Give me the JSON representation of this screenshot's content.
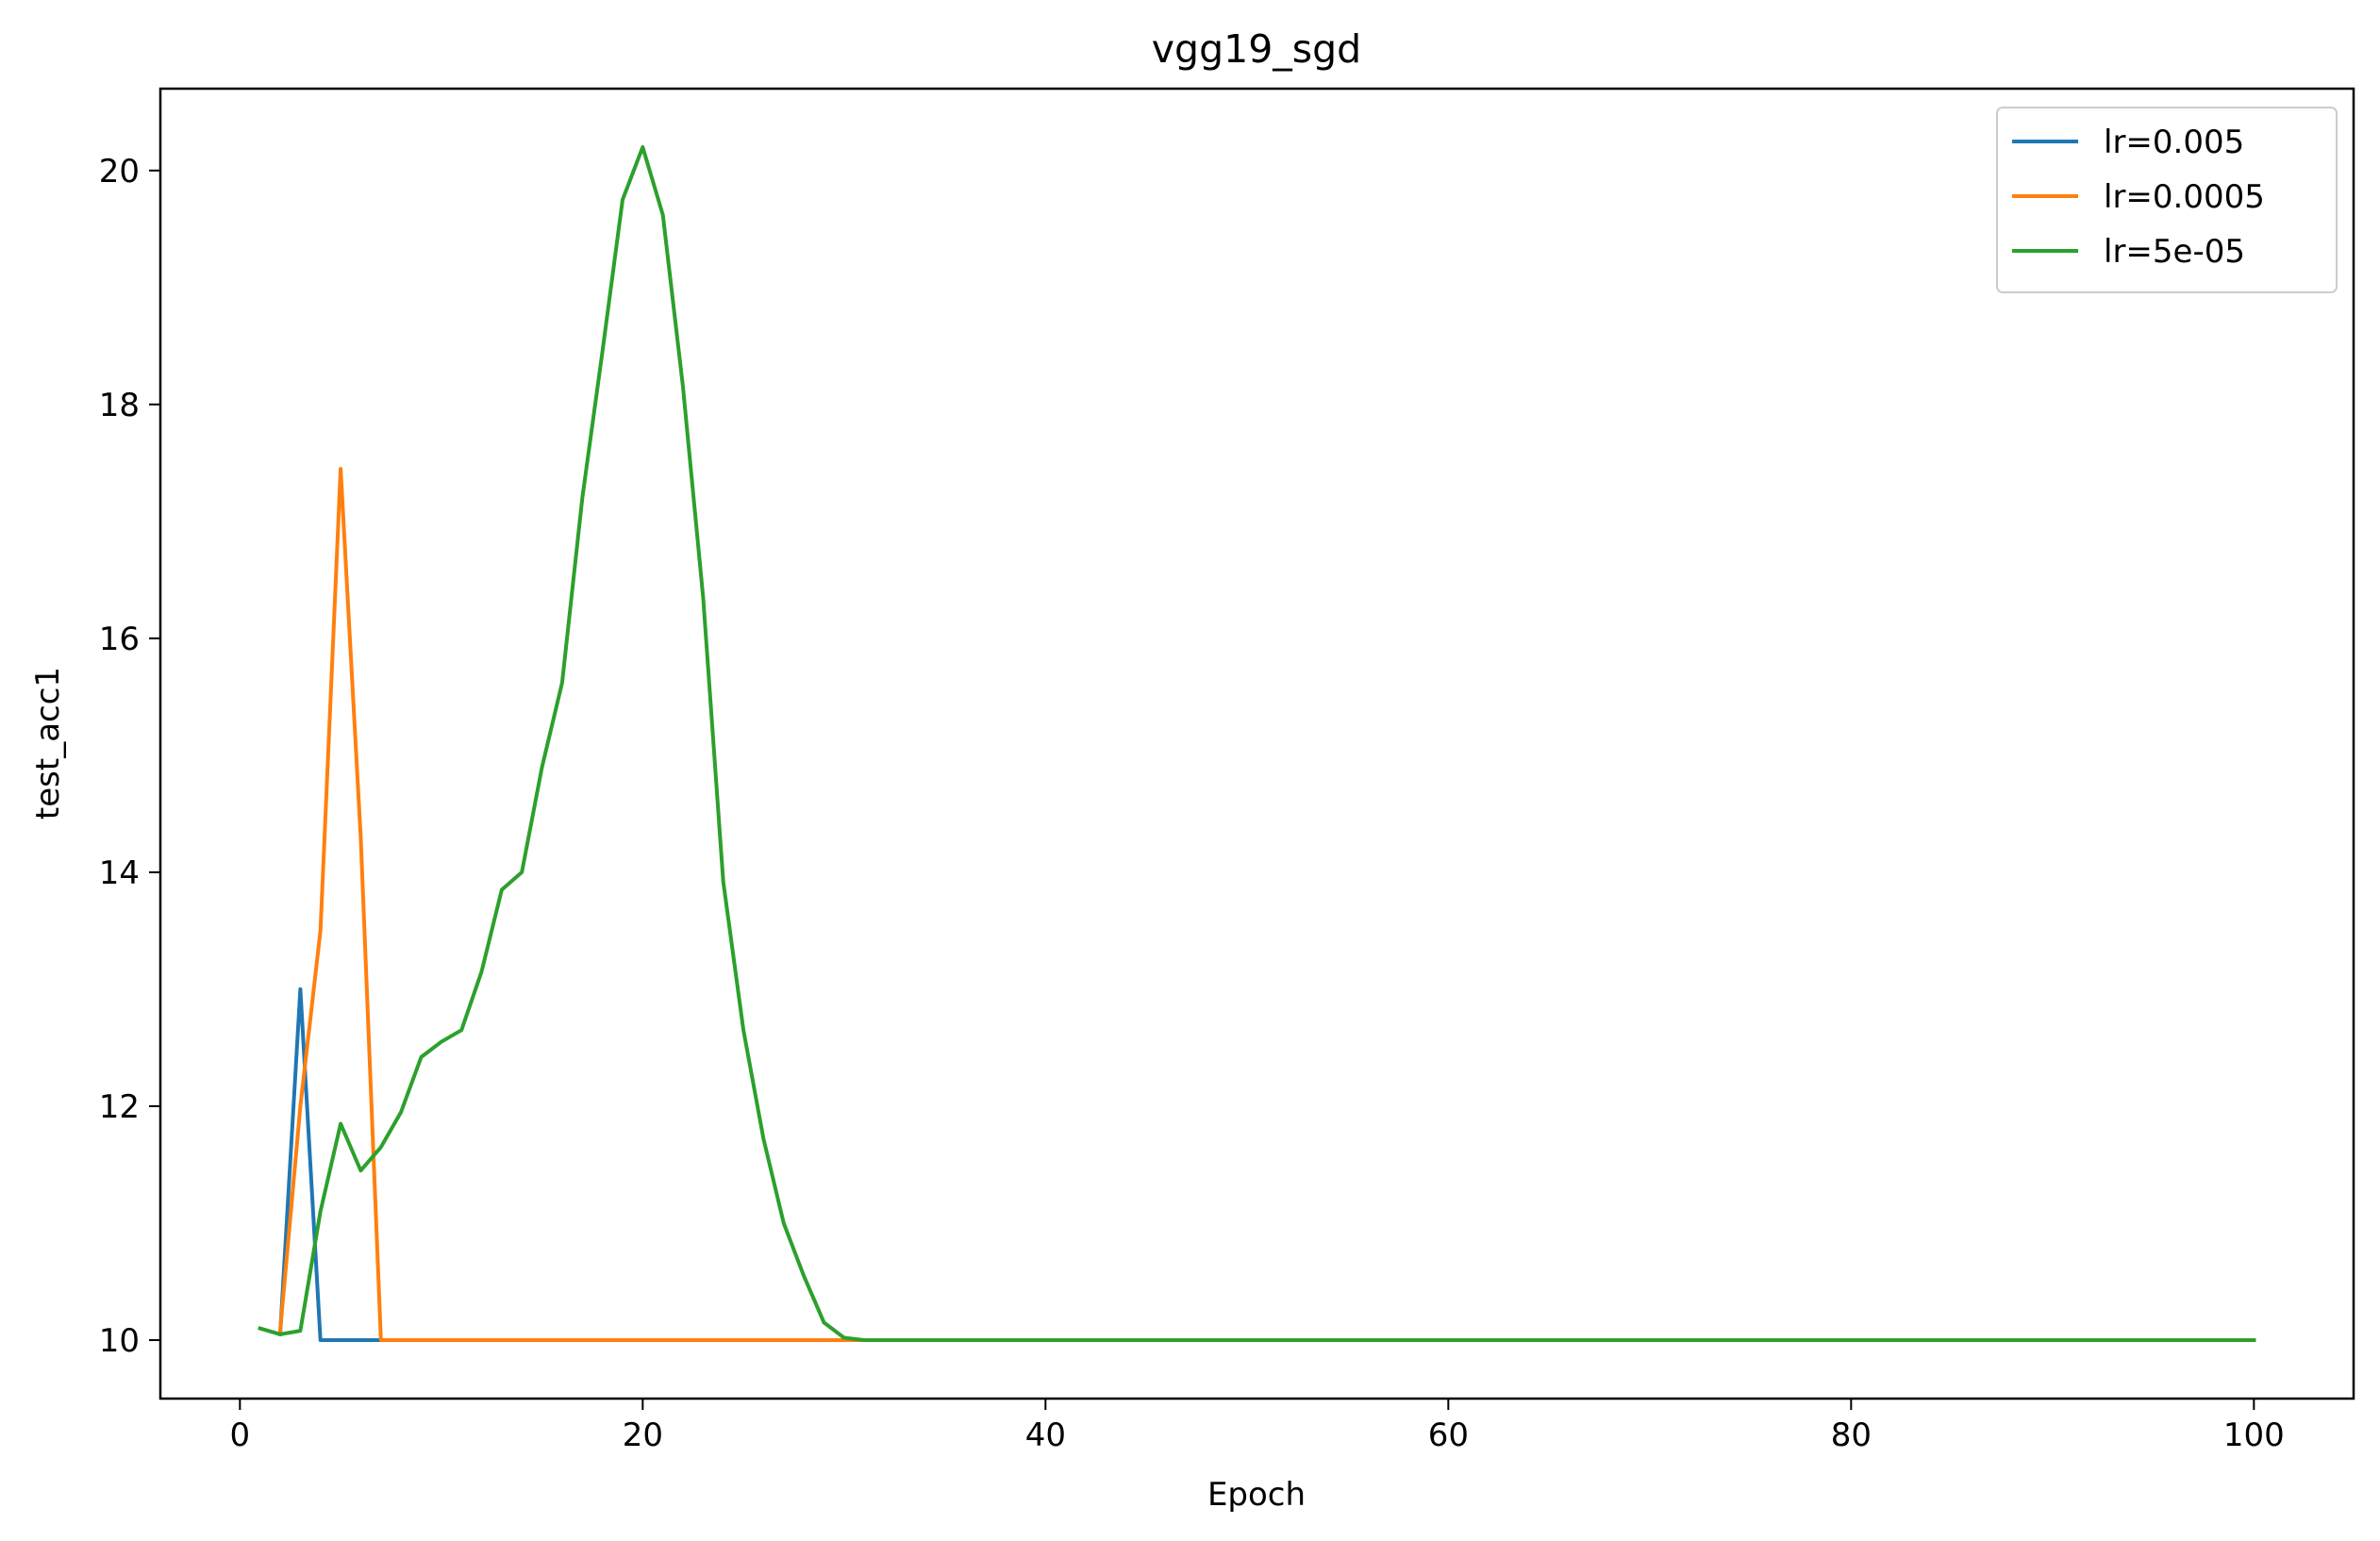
{
  "chart_data": {
    "type": "line",
    "title": "vgg19_sgd",
    "xlabel": "Epoch",
    "ylabel": "test_acc1",
    "xlim": [
      -3.95,
      104.95
    ],
    "ylim": [
      9.5,
      20.7
    ],
    "xticks": [
      0,
      20,
      40,
      60,
      80,
      100
    ],
    "yticks": [
      10,
      12,
      14,
      16,
      18,
      20
    ],
    "grid": false,
    "legend_position": "top-right",
    "series": [
      {
        "name": "lr=0.005",
        "color": "#1f77b4",
        "x": [
          2,
          3,
          4,
          5,
          6,
          7,
          100
        ],
        "y": [
          10.05,
          13.0,
          10.0,
          10.0,
          10.0,
          10.0,
          10.0
        ]
      },
      {
        "name": "lr=0.0005",
        "color": "#ff7f0e",
        "x": [
          2,
          3,
          4,
          5,
          6,
          7,
          30,
          100
        ],
        "y": [
          10.08,
          12.0,
          13.5,
          17.45,
          14.3,
          10.0,
          10.0,
          10.0
        ]
      },
      {
        "name": "lr=5e-05",
        "color": "#2ca02c",
        "x": [
          1,
          2,
          3,
          4,
          5,
          6,
          7,
          8,
          9,
          10,
          11,
          12,
          13,
          14,
          15,
          16,
          17,
          18,
          19,
          20,
          21,
          22,
          23,
          24,
          25,
          26,
          27,
          28,
          29,
          30,
          31,
          100
        ],
        "y": [
          10.1,
          10.05,
          10.08,
          11.1,
          11.85,
          11.45,
          11.65,
          11.95,
          12.42,
          12.55,
          12.65,
          13.15,
          13.85,
          14.0,
          14.9,
          15.62,
          17.2,
          18.45,
          19.75,
          20.2,
          19.62,
          18.15,
          16.35,
          13.92,
          12.65,
          11.72,
          11.0,
          10.55,
          10.15,
          10.02,
          10.0,
          10.0
        ]
      }
    ]
  }
}
